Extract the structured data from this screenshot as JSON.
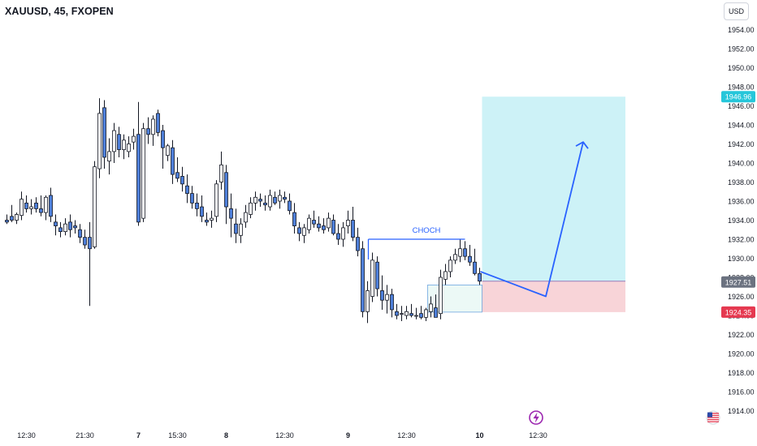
{
  "header": {
    "title": "XAUUSD, 45, FXOPEN",
    "currency": "USD"
  },
  "colors": {
    "up": "#ffffff",
    "down": "#4e7fd9",
    "wick": "#131722",
    "target_zone": "#b2ebf2",
    "stop_zone": "#f5c6cb",
    "arrow": "#2962ff"
  },
  "chart_data": {
    "type": "candlestick",
    "symbol": "XAUUSD",
    "timeframe": "45",
    "ylim": [
      1913,
      1956
    ],
    "y_ticks": [
      1914,
      1916,
      1918,
      1920,
      1922,
      1924,
      1926,
      1928,
      1930,
      1932,
      1934,
      1936,
      1938,
      1940,
      1942,
      1944,
      1946,
      1948,
      1950,
      1952,
      1954
    ],
    "x_ticks": [
      {
        "label": "12:30",
        "bar": 4
      },
      {
        "label": "21:30",
        "bar": 16
      },
      {
        "label": "7",
        "bar": 27,
        "day": true
      },
      {
        "label": "15:30",
        "bar": 35
      },
      {
        "label": "8",
        "bar": 45,
        "day": true
      },
      {
        "label": "12:30",
        "bar": 57
      },
      {
        "label": "9",
        "bar": 70,
        "day": true
      },
      {
        "label": "12:30",
        "bar": 82
      },
      {
        "label": "10",
        "bar": 97,
        "day": true
      },
      {
        "label": "12:30",
        "bar": 109
      }
    ],
    "candles": [
      [
        1934.0,
        1934.6,
        1933.6,
        1933.8
      ],
      [
        1934.4,
        1935.6,
        1933.8,
        1934.0
      ],
      [
        1934.0,
        1934.8,
        1933.6,
        1934.6
      ],
      [
        1934.5,
        1937.0,
        1934.0,
        1936.2
      ],
      [
        1935.8,
        1936.6,
        1934.8,
        1935.2
      ],
      [
        1935.2,
        1936.2,
        1934.6,
        1935.4
      ],
      [
        1935.8,
        1936.4,
        1934.8,
        1935.2
      ],
      [
        1935.2,
        1936.6,
        1934.4,
        1934.8
      ],
      [
        1934.8,
        1936.6,
        1934.0,
        1936.4
      ],
      [
        1936.6,
        1937.4,
        1933.8,
        1934.4
      ],
      [
        1933.8,
        1934.6,
        1932.4,
        1933.4
      ],
      [
        1933.2,
        1933.8,
        1932.2,
        1932.8
      ],
      [
        1932.8,
        1934.2,
        1932.4,
        1933.6
      ],
      [
        1933.8,
        1934.6,
        1932.2,
        1933.0
      ],
      [
        1933.4,
        1934.0,
        1932.6,
        1933.2
      ],
      [
        1933.0,
        1933.6,
        1931.6,
        1932.2
      ],
      [
        1932.2,
        1933.0,
        1931.0,
        1931.4
      ],
      [
        1932.2,
        1933.8,
        1925.0,
        1931.0
      ],
      [
        1931.2,
        1940.2,
        1931.0,
        1939.6
      ],
      [
        1939.4,
        1946.8,
        1938.4,
        1945.2
      ],
      [
        1945.8,
        1946.6,
        1939.4,
        1940.6
      ],
      [
        1940.2,
        1942.6,
        1938.8,
        1941.2
      ],
      [
        1941.2,
        1944.2,
        1940.0,
        1943.4
      ],
      [
        1943.0,
        1943.8,
        1940.6,
        1941.4
      ],
      [
        1941.4,
        1943.0,
        1940.4,
        1942.4
      ],
      [
        1941.2,
        1942.8,
        1940.6,
        1942.0
      ],
      [
        1942.2,
        1943.6,
        1941.4,
        1942.8
      ],
      [
        1943.0,
        1946.4,
        1933.4,
        1933.8
      ],
      [
        1934.2,
        1944.2,
        1933.8,
        1943.6
      ],
      [
        1943.6,
        1944.8,
        1942.0,
        1943.0
      ],
      [
        1943.0,
        1945.0,
        1941.8,
        1944.6
      ],
      [
        1945.2,
        1945.6,
        1942.8,
        1943.2
      ],
      [
        1943.4,
        1944.0,
        1939.4,
        1941.6
      ],
      [
        1940.8,
        1942.0,
        1940.2,
        1941.8
      ],
      [
        1941.6,
        1942.4,
        1937.8,
        1938.8
      ],
      [
        1939.0,
        1940.6,
        1938.0,
        1938.4
      ],
      [
        1938.6,
        1939.6,
        1937.0,
        1937.8
      ],
      [
        1937.6,
        1938.8,
        1935.8,
        1936.8
      ],
      [
        1936.8,
        1937.6,
        1935.2,
        1935.8
      ],
      [
        1935.8,
        1936.8,
        1934.4,
        1935.2
      ],
      [
        1935.4,
        1936.6,
        1933.8,
        1934.4
      ],
      [
        1934.0,
        1934.8,
        1933.4,
        1933.8
      ],
      [
        1934.0,
        1935.0,
        1933.2,
        1934.2
      ],
      [
        1934.4,
        1938.2,
        1933.8,
        1937.8
      ],
      [
        1938.0,
        1941.2,
        1937.2,
        1939.8
      ],
      [
        1939.0,
        1939.8,
        1933.6,
        1935.4
      ],
      [
        1935.2,
        1936.8,
        1932.2,
        1934.2
      ],
      [
        1933.6,
        1935.2,
        1931.6,
        1932.6
      ],
      [
        1932.4,
        1934.2,
        1931.6,
        1933.6
      ],
      [
        1933.8,
        1935.6,
        1933.2,
        1934.8
      ],
      [
        1934.6,
        1936.4,
        1934.2,
        1935.8
      ],
      [
        1935.8,
        1937.0,
        1935.0,
        1936.4
      ],
      [
        1936.2,
        1936.8,
        1935.4,
        1936.0
      ],
      [
        1935.8,
        1936.6,
        1935.0,
        1935.6
      ],
      [
        1935.4,
        1937.2,
        1935.0,
        1936.6
      ],
      [
        1936.4,
        1937.0,
        1935.6,
        1935.8
      ],
      [
        1936.0,
        1937.2,
        1935.2,
        1936.6
      ],
      [
        1936.4,
        1937.0,
        1935.8,
        1936.2
      ],
      [
        1936.0,
        1936.8,
        1934.6,
        1935.0
      ],
      [
        1934.8,
        1935.8,
        1932.6,
        1933.4
      ],
      [
        1933.2,
        1933.8,
        1931.8,
        1932.6
      ],
      [
        1932.4,
        1933.6,
        1931.6,
        1933.2
      ],
      [
        1933.0,
        1934.6,
        1932.6,
        1934.2
      ],
      [
        1934.0,
        1935.0,
        1933.2,
        1933.6
      ],
      [
        1933.6,
        1934.4,
        1932.8,
        1933.2
      ],
      [
        1933.4,
        1934.2,
        1932.6,
        1933.0
      ],
      [
        1933.2,
        1934.8,
        1932.8,
        1934.2
      ],
      [
        1934.0,
        1934.6,
        1932.4,
        1932.6
      ],
      [
        1932.6,
        1933.6,
        1931.4,
        1932.0
      ],
      [
        1932.0,
        1933.8,
        1931.2,
        1933.2
      ],
      [
        1933.4,
        1935.0,
        1932.6,
        1934.0
      ],
      [
        1934.0,
        1935.4,
        1931.8,
        1932.2
      ],
      [
        1932.2,
        1933.2,
        1930.2,
        1930.8
      ],
      [
        1931.0,
        1931.8,
        1923.8,
        1924.4
      ],
      [
        1924.4,
        1927.6,
        1923.2,
        1926.6
      ],
      [
        1926.0,
        1930.6,
        1925.4,
        1929.8
      ],
      [
        1929.6,
        1930.2,
        1926.0,
        1926.8
      ],
      [
        1926.6,
        1928.2,
        1924.6,
        1925.6
      ],
      [
        1925.6,
        1927.2,
        1924.2,
        1926.2
      ],
      [
        1926.2,
        1926.8,
        1923.8,
        1924.6
      ],
      [
        1924.4,
        1925.2,
        1923.6,
        1924.0
      ],
      [
        1924.2,
        1925.0,
        1923.4,
        1924.2
      ],
      [
        1924.0,
        1925.0,
        1923.6,
        1924.4
      ],
      [
        1924.2,
        1925.2,
        1923.8,
        1924.0
      ],
      [
        1924.0,
        1924.8,
        1923.6,
        1924.0
      ],
      [
        1924.2,
        1925.0,
        1923.6,
        1923.8
      ],
      [
        1923.8,
        1924.8,
        1923.4,
        1924.6
      ],
      [
        1924.4,
        1926.0,
        1923.8,
        1925.2
      ],
      [
        1924.8,
        1926.2,
        1924.2,
        1923.8
      ],
      [
        1924.2,
        1928.8,
        1923.6,
        1928.0
      ],
      [
        1927.8,
        1929.4,
        1927.2,
        1928.6
      ],
      [
        1928.6,
        1930.2,
        1928.0,
        1929.8
      ],
      [
        1929.8,
        1931.0,
        1929.4,
        1930.4
      ],
      [
        1930.2,
        1932.0,
        1929.6,
        1931.0
      ],
      [
        1931.0,
        1931.8,
        1929.8,
        1930.2
      ],
      [
        1930.2,
        1931.4,
        1929.2,
        1929.6
      ],
      [
        1929.6,
        1931.0,
        1928.2,
        1928.4
      ],
      [
        1928.4,
        1929.0,
        1927.2,
        1927.6
      ]
    ],
    "annotations": {
      "choch_label": "CHOCH",
      "choch_level": 1932.0,
      "current_price": "1927.51",
      "target_price": "1946.96",
      "stop_price": "1924.35",
      "entry_level": 1927.6,
      "target_level": 1946.96,
      "stop_level": 1924.35,
      "demand_zone": [
        1924.35,
        1927.2
      ],
      "arrow_end": 1942.2
    }
  },
  "footer": {
    "lightning_icon": "lightning-icon",
    "flag_icon": "us-flag-icon"
  }
}
